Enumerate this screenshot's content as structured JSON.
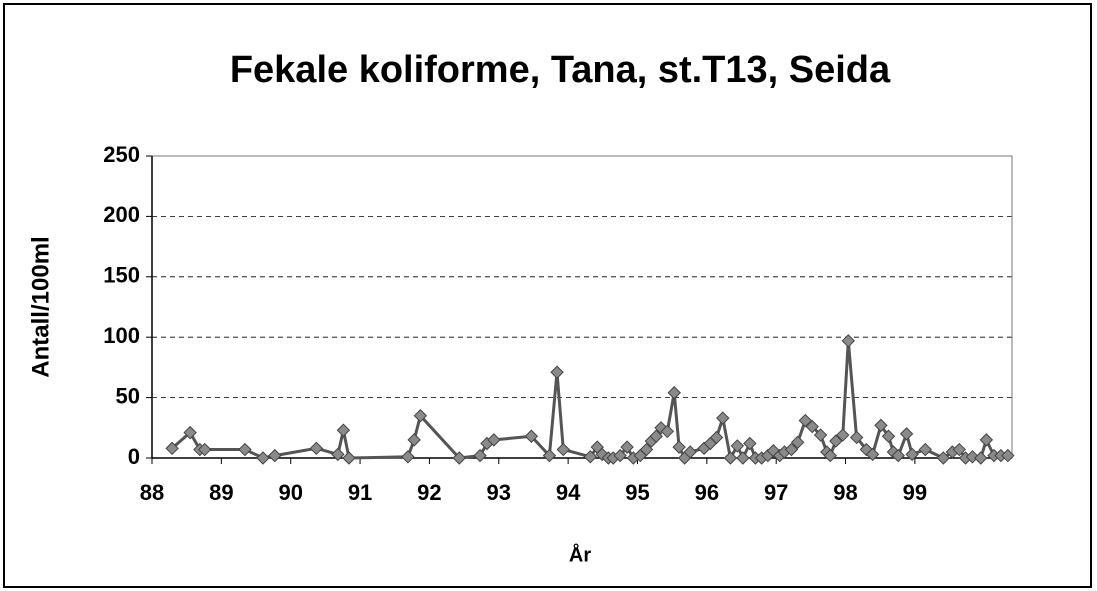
{
  "chart_data": {
    "type": "line",
    "title": "Fekale koliforme, Tana, st.T13, Seida",
    "x_label": "År",
    "y_label": "Antall/100ml",
    "xlim": [
      88,
      100.4
    ],
    "xticks": [
      88,
      89,
      90,
      91,
      92,
      93,
      94,
      95,
      96,
      97,
      98,
      99
    ],
    "ylim": [
      0,
      250
    ],
    "yticks": [
      0,
      50,
      100,
      150,
      200,
      250
    ],
    "grid": true,
    "series": [
      {
        "color": "#555555",
        "x": [
          88.29,
          88.55,
          88.69,
          88.76,
          89.34,
          89.6,
          89.77,
          90.37,
          90.68,
          90.76,
          90.84,
          91.69,
          91.78,
          91.87,
          92.43,
          92.73,
          92.83,
          92.93,
          93.47,
          93.73,
          93.84,
          93.93,
          94.32,
          94.42,
          94.49,
          94.58,
          94.65,
          94.75,
          94.85,
          94.94,
          95.04,
          95.13,
          95.2,
          95.27,
          95.34,
          95.43,
          95.53,
          95.6,
          95.68,
          95.76,
          95.96,
          96.05,
          96.14,
          96.23,
          96.34,
          96.44,
          96.52,
          96.62,
          96.7,
          96.79,
          96.88,
          96.96,
          97.05,
          97.12,
          97.22,
          97.31,
          97.42,
          97.52,
          97.64,
          97.73,
          97.78,
          97.86,
          97.96,
          98.04,
          98.16,
          98.3,
          98.39,
          98.51,
          98.62,
          98.69,
          98.76,
          98.88,
          98.96,
          99.15,
          99.41,
          99.54,
          99.64,
          99.73,
          99.83,
          99.95,
          100.03,
          100.14,
          100.24,
          100.34
        ],
        "values": [
          8,
          21,
          7,
          7,
          7,
          0,
          2,
          8,
          3,
          23,
          0,
          1,
          15,
          35,
          0,
          2,
          12,
          15,
          18,
          2,
          71,
          7,
          1,
          9,
          3,
          0,
          0,
          2,
          9,
          0,
          2,
          7,
          14,
          18,
          25,
          22,
          54,
          9,
          0,
          5,
          8,
          12,
          17,
          33,
          0,
          10,
          0,
          12,
          0,
          0,
          2,
          6,
          2,
          5,
          7,
          13,
          31,
          26,
          19,
          5,
          2,
          14,
          19,
          97,
          17,
          7,
          3,
          27,
          18,
          5,
          2,
          20,
          3,
          7,
          0,
          5,
          7,
          0,
          1,
          0,
          15,
          2,
          2,
          2
        ]
      }
    ]
  }
}
